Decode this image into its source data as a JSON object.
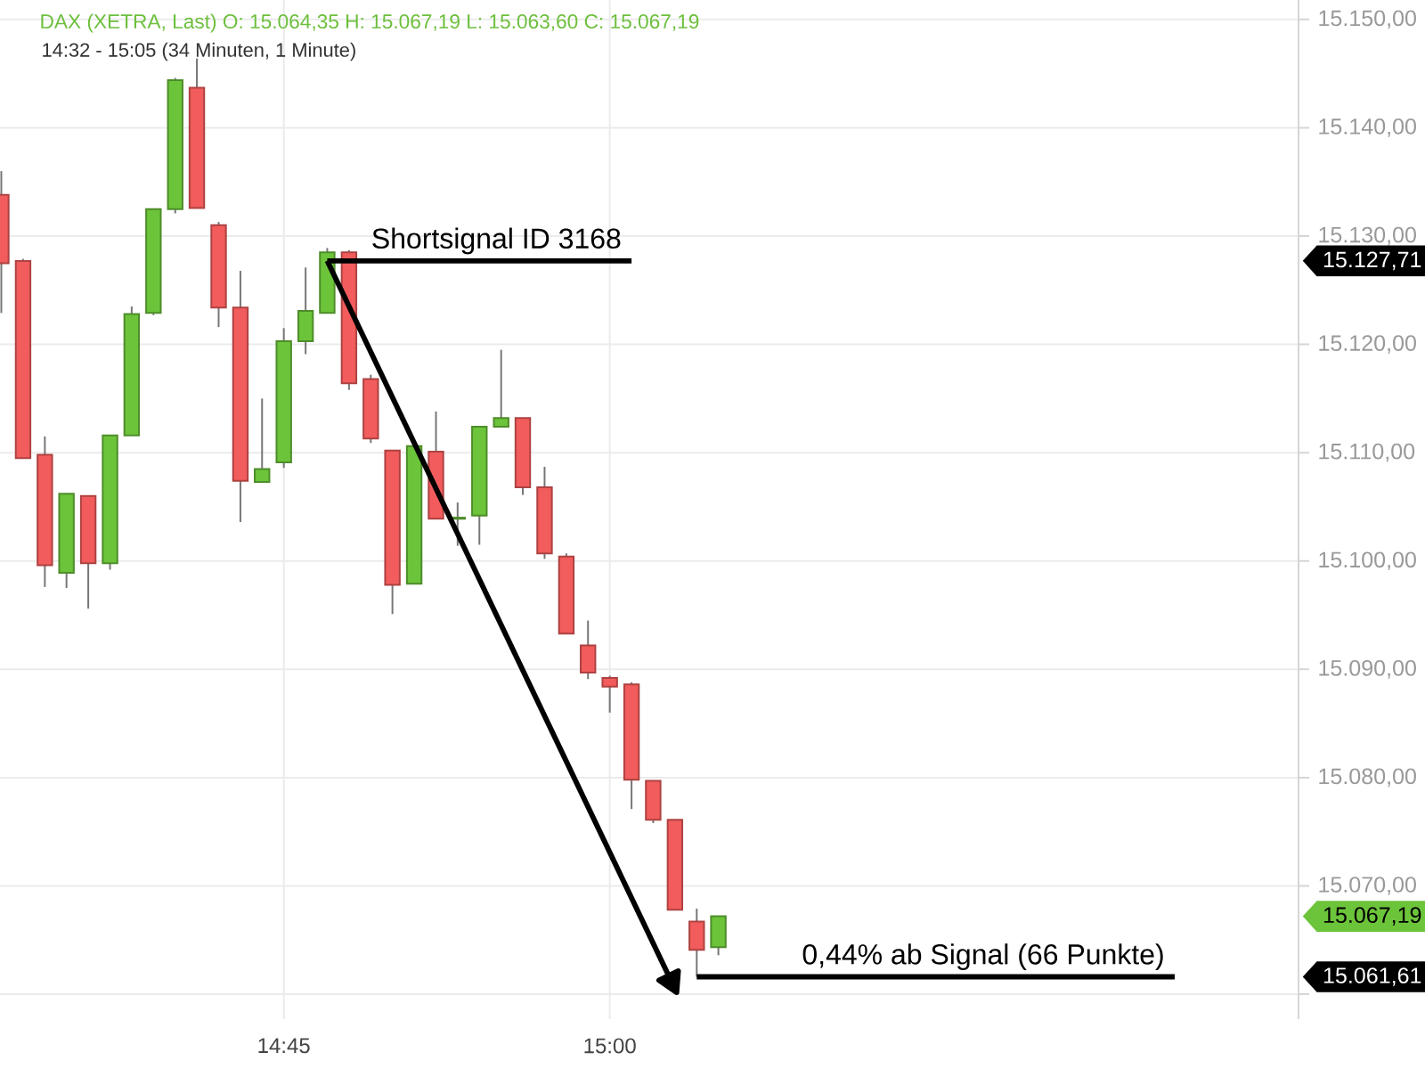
{
  "chart_data": {
    "type": "candlestick",
    "title": "DAX (XETRA, Last)  O: 15.064,35  H: 15.067,19  L: 15.063,60  C: 15.067,19",
    "subtitle": "14:32 - 15:05   (34 Minuten, 1 Minute)",
    "x": [
      14.5333,
      14.55,
      14.5667,
      14.5833,
      14.6,
      14.6167,
      14.6333,
      14.65,
      14.6667,
      14.6833,
      14.7,
      14.7167,
      14.7333,
      14.75,
      14.7667,
      14.7833,
      14.8,
      14.8167,
      14.8333,
      14.85,
      14.8667,
      14.8833,
      14.9,
      14.9167,
      14.9333,
      14.95,
      14.9667,
      14.9833,
      15,
      15.0167,
      15.0333,
      15.05,
      15.0667,
      15.0833
    ],
    "ohlc": [
      [
        15133.8,
        15136.0,
        15122.9,
        15127.5
      ],
      [
        15127.7,
        15127.9,
        15109.5,
        15109.5
      ],
      [
        15109.8,
        15111.5,
        15097.6,
        15099.6
      ],
      [
        15098.9,
        15106.2,
        15097.5,
        15106.2
      ],
      [
        15106.0,
        15106.0,
        15095.6,
        15099.8
      ],
      [
        15099.8,
        15111.6,
        15099.2,
        15111.6
      ],
      [
        15111.6,
        15123.5,
        15111.6,
        15122.8
      ],
      [
        15122.9,
        15132.5,
        15122.7,
        15132.5
      ],
      [
        15132.5,
        15144.6,
        15132.1,
        15144.4
      ],
      [
        15143.7,
        15146.4,
        15132.6,
        15132.6
      ],
      [
        15131.0,
        15131.3,
        15121.6,
        15123.4
      ],
      [
        15123.4,
        15126.8,
        15103.6,
        15107.4
      ],
      [
        15107.3,
        15115.0,
        15107.3,
        15108.5
      ],
      [
        15109.1,
        15121.5,
        15108.6,
        15120.3
      ],
      [
        15120.3,
        15127.1,
        15119.1,
        15123.1
      ],
      [
        15122.9,
        15128.9,
        15122.9,
        15128.5
      ],
      [
        15128.5,
        15128.7,
        15115.8,
        15116.4
      ],
      [
        15116.8,
        15117.2,
        15110.9,
        15111.3
      ],
      [
        15110.2,
        15110.2,
        15095.1,
        15097.8
      ],
      [
        15097.9,
        15110.6,
        15097.9,
        15110.6
      ],
      [
        15110.1,
        15113.8,
        15103.9,
        15103.9
      ],
      [
        15103.9,
        15105.4,
        15101.4,
        15104.0
      ],
      [
        15104.2,
        15112.4,
        15101.5,
        15112.4
      ],
      [
        15112.4,
        15119.5,
        15112.4,
        15113.2
      ],
      [
        15113.2,
        15113.2,
        15106.1,
        15106.8
      ],
      [
        15106.8,
        15108.7,
        15100.2,
        15100.7
      ],
      [
        15100.4,
        15100.7,
        15093.3,
        15093.3
      ],
      [
        15092.2,
        15094.5,
        15089.1,
        15089.7
      ],
      [
        15089.2,
        15089.4,
        15086.0,
        15088.4
      ],
      [
        15088.6,
        15088.8,
        15077.1,
        15079.8
      ],
      [
        15079.7,
        15079.7,
        15075.8,
        15076.1
      ],
      [
        15076.1,
        15076.1,
        15067.8,
        15067.8
      ],
      [
        15066.7,
        15067.9,
        15061.61,
        15064.1
      ],
      [
        15064.35,
        15067.19,
        15063.6,
        15067.19
      ]
    ],
    "colors": [
      "#f25c5c",
      "#f25c5c",
      "#f25c5c",
      "#6cc43a",
      "#f25c5c",
      "#6cc43a",
      "#6cc43a",
      "#6cc43a",
      "#6cc43a",
      "#f25c5c",
      "#f25c5c",
      "#f25c5c",
      "#6cc43a",
      "#6cc43a",
      "#6cc43a",
      "#6cc43a",
      "#f25c5c",
      "#f25c5c",
      "#f25c5c",
      "#6cc43a",
      "#f25c5c",
      "#6cc43a",
      "#6cc43a",
      "#6cc43a",
      "#f25c5c",
      "#f25c5c",
      "#f25c5c",
      "#f25c5c",
      "#f25c5c",
      "#f25c5c",
      "#f25c5c",
      "#f25c5c",
      "#f25c5c",
      "#6cc43a"
    ],
    "series": [
      {
        "type": "line",
        "color": "#000000",
        "x": [
          14.7833,
          15.0167
        ],
        "values": [
          15127.71,
          15127.71
        ]
      },
      {
        "type": "line",
        "color": "#000000",
        "marker": "triangle",
        "x": [
          14.7833,
          15.0472
        ],
        "values": [
          15127.71,
          15061.2
        ]
      },
      {
        "type": "line",
        "color": "#000000",
        "x": [
          15.0667,
          15.4333
        ],
        "values": [
          15061.61,
          15061.61
        ]
      }
    ],
    "xlim": [
      14.5323,
      15.5283
    ],
    "ylim": [
      15057.7,
      15151.8
    ],
    "xticks": [
      {
        "value": 14.75,
        "label": "14:45"
      },
      {
        "value": 15,
        "label": "15:00"
      }
    ],
    "yticks": [
      {
        "value": 15060,
        "label": null
      },
      {
        "value": 15070,
        "label": "15.070,00"
      },
      {
        "value": 15080,
        "label": "15.080,00"
      },
      {
        "value": 15090,
        "label": "15.090,00"
      },
      {
        "value": 15100,
        "label": "15.100,00"
      },
      {
        "value": 15110,
        "label": "15.110,00"
      },
      {
        "value": 15120,
        "label": "15.120,00"
      },
      {
        "value": 15130,
        "label": "15.130,00"
      },
      {
        "value": 15140,
        "label": "15.140,00"
      },
      {
        "value": 15150,
        "label": "15.150,00"
      },
      {
        "value": 15127.71,
        "label": "15.127,71"
      },
      {
        "value": 15067.19,
        "label": "15.067,19"
      },
      {
        "value": 15061.61,
        "label": "15.061,61"
      }
    ],
    "annotations": [
      {
        "text": "Shortsignal ID 3168",
        "x": 15.0167,
        "y": 15127.71
      },
      {
        "text": "0,44% ab Signal (66 Punkte)",
        "x": 15.4333,
        "y": 15061.61
      }
    ],
    "grid": true
  }
}
